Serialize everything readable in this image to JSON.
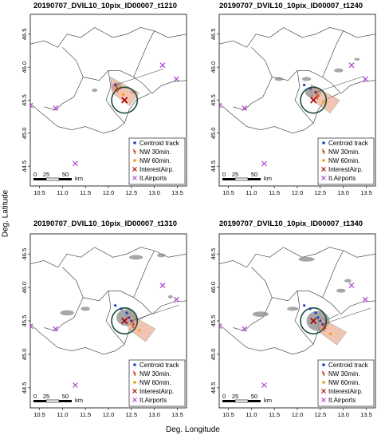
{
  "figure": {
    "xlabel": "Deg. Longitude",
    "ylabel": "Deg. Latitude"
  },
  "colors": {
    "centroid": "#1f3fbf",
    "nw30": "#cc2200",
    "nw60": "#ff9900",
    "interest": "#b00000",
    "airports": "#b040d0",
    "circle": "#1a4d3a",
    "cells": "#888888",
    "cone": "#e8a080"
  },
  "chart_data": [
    {
      "type": "scatter",
      "title": "20190707_DVIL10_10pix_ID00007_t1210",
      "xlim": [
        10.3,
        13.7
      ],
      "ylim": [
        44.2,
        46.8
      ],
      "xticks": [
        "10.5",
        "11.0",
        "11.5",
        "12.0",
        "12.5",
        "13.0",
        "13.5"
      ],
      "yticks": [
        "44.5",
        "45.0",
        "45.5",
        "46.0",
        "46.5"
      ],
      "legend": [
        "Centroid track",
        "NW 30min.",
        "NW 60min.",
        "InterestAirp.",
        "It.Airports"
      ],
      "scalebar": {
        "labels": [
          "0",
          "25",
          "50"
        ],
        "unit": "km"
      },
      "interest_airport": [
        12.35,
        45.5
      ],
      "airports": [
        [
          10.3,
          45.42
        ],
        [
          10.85,
          45.38
        ],
        [
          11.28,
          44.54
        ],
        [
          13.18,
          46.03
        ],
        [
          13.48,
          45.82
        ]
      ],
      "centroid_track": [
        [
          12.15,
          45.73
        ]
      ],
      "circle_radius_deg": 0.28,
      "cells": [
        {
          "x": 12.18,
          "y": 45.7,
          "w": 0.22,
          "h": 0.14
        },
        {
          "x": 11.7,
          "y": 45.65,
          "w": 0.12,
          "h": 0.05
        },
        {
          "x": 12.55,
          "y": 45.62,
          "w": 0.15,
          "h": 0.05
        }
      ]
    },
    {
      "type": "scatter",
      "title": "20190707_DVIL10_10pix_ID00007_t1240",
      "xlim": [
        10.3,
        13.7
      ],
      "ylim": [
        44.2,
        46.8
      ],
      "xticks": [
        "10.5",
        "11.0",
        "11.5",
        "12.0",
        "12.5",
        "13.0",
        "13.5"
      ],
      "yticks": [
        "44.5",
        "45.0",
        "45.5",
        "46.0",
        "46.5"
      ],
      "legend": [
        "Centroid track",
        "NW 30min.",
        "NW 60min.",
        "InterestAirp.",
        "It.Airports"
      ],
      "scalebar": {
        "labels": [
          "0",
          "25",
          "50"
        ],
        "unit": "km"
      },
      "interest_airport": [
        12.35,
        45.5
      ],
      "airports": [
        [
          10.3,
          45.42
        ],
        [
          10.85,
          45.38
        ],
        [
          11.28,
          44.54
        ],
        [
          13.18,
          46.03
        ],
        [
          13.48,
          45.82
        ]
      ],
      "centroid_track": [
        [
          12.15,
          45.73
        ],
        [
          12.28,
          45.68
        ],
        [
          12.4,
          45.62
        ]
      ],
      "circle_radius_deg": 0.28,
      "cells": [
        {
          "x": 12.35,
          "y": 45.62,
          "w": 0.35,
          "h": 0.18
        },
        {
          "x": 11.6,
          "y": 45.82,
          "w": 0.18,
          "h": 0.06
        },
        {
          "x": 12.2,
          "y": 45.82,
          "w": 0.2,
          "h": 0.06
        },
        {
          "x": 12.9,
          "y": 45.95,
          "w": 0.2,
          "h": 0.06
        },
        {
          "x": 13.3,
          "y": 46.12,
          "w": 0.12,
          "h": 0.04
        }
      ]
    },
    {
      "type": "scatter",
      "title": "20190707_DVIL10_10pix_ID00007_t1310",
      "xlim": [
        10.3,
        13.7
      ],
      "ylim": [
        44.2,
        46.8
      ],
      "xticks": [
        "10.5",
        "11.0",
        "11.5",
        "12.0",
        "12.5",
        "13.0",
        "13.5"
      ],
      "yticks": [
        "44.5",
        "45.0",
        "45.5",
        "46.0",
        "46.5"
      ],
      "legend": [
        "Centroid track",
        "NW 30min.",
        "NW 60min.",
        "InterestAirp.",
        "It.Airports"
      ],
      "scalebar": {
        "labels": [
          "0",
          "25",
          "50"
        ],
        "unit": "km"
      },
      "interest_airport": [
        12.35,
        45.5
      ],
      "airports": [
        [
          10.3,
          45.42
        ],
        [
          10.85,
          45.38
        ],
        [
          11.28,
          44.54
        ],
        [
          13.18,
          46.03
        ],
        [
          13.48,
          45.82
        ]
      ],
      "centroid_track": [
        [
          12.15,
          45.73
        ],
        [
          12.28,
          45.68
        ],
        [
          12.4,
          45.62
        ],
        [
          12.45,
          45.55
        ],
        [
          12.5,
          45.5
        ]
      ],
      "circle_radius_deg": 0.28,
      "cells": [
        {
          "x": 12.4,
          "y": 45.55,
          "w": 0.45,
          "h": 0.25
        },
        {
          "x": 11.1,
          "y": 45.62,
          "w": 0.3,
          "h": 0.08
        },
        {
          "x": 11.5,
          "y": 45.68,
          "w": 0.2,
          "h": 0.06
        },
        {
          "x": 12.6,
          "y": 46.45,
          "w": 0.3,
          "h": 0.07
        },
        {
          "x": 13.15,
          "y": 46.48,
          "w": 0.18,
          "h": 0.06
        },
        {
          "x": 13.35,
          "y": 45.86,
          "w": 0.1,
          "h": 0.05
        }
      ]
    },
    {
      "type": "scatter",
      "title": "20190707_DVIL10_10pix_ID00007_t1340",
      "xlim": [
        10.3,
        13.7
      ],
      "ylim": [
        44.2,
        46.8
      ],
      "xticks": [
        "10.5",
        "11.0",
        "11.5",
        "12.0",
        "12.5",
        "13.0",
        "13.5"
      ],
      "yticks": [
        "44.5",
        "45.0",
        "45.5",
        "46.0",
        "46.5"
      ],
      "legend": [
        "Centroid track",
        "NW 30min.",
        "NW 60min.",
        "InterestAirp.",
        "It.Airports"
      ],
      "scalebar": {
        "labels": [
          "0",
          "25",
          "50"
        ],
        "unit": "km"
      },
      "interest_airport": [
        12.35,
        45.5
      ],
      "airports": [
        [
          10.3,
          45.42
        ],
        [
          10.85,
          45.38
        ],
        [
          11.28,
          44.54
        ],
        [
          13.18,
          46.03
        ],
        [
          13.48,
          45.82
        ]
      ],
      "centroid_track": [
        [
          12.15,
          45.73
        ],
        [
          12.28,
          45.68
        ],
        [
          12.4,
          45.62
        ],
        [
          12.45,
          45.55
        ],
        [
          12.5,
          45.5
        ],
        [
          12.55,
          45.45
        ]
      ],
      "circle_radius_deg": 0.28,
      "cells": [
        {
          "x": 12.45,
          "y": 45.5,
          "w": 0.5,
          "h": 0.3
        },
        {
          "x": 11.2,
          "y": 45.6,
          "w": 0.35,
          "h": 0.08
        },
        {
          "x": 11.9,
          "y": 45.68,
          "w": 0.25,
          "h": 0.06
        },
        {
          "x": 12.2,
          "y": 46.42,
          "w": 0.35,
          "h": 0.07
        },
        {
          "x": 12.95,
          "y": 45.95,
          "w": 0.2,
          "h": 0.06
        },
        {
          "x": 13.1,
          "y": 46.1,
          "w": 0.15,
          "h": 0.05
        }
      ]
    }
  ]
}
